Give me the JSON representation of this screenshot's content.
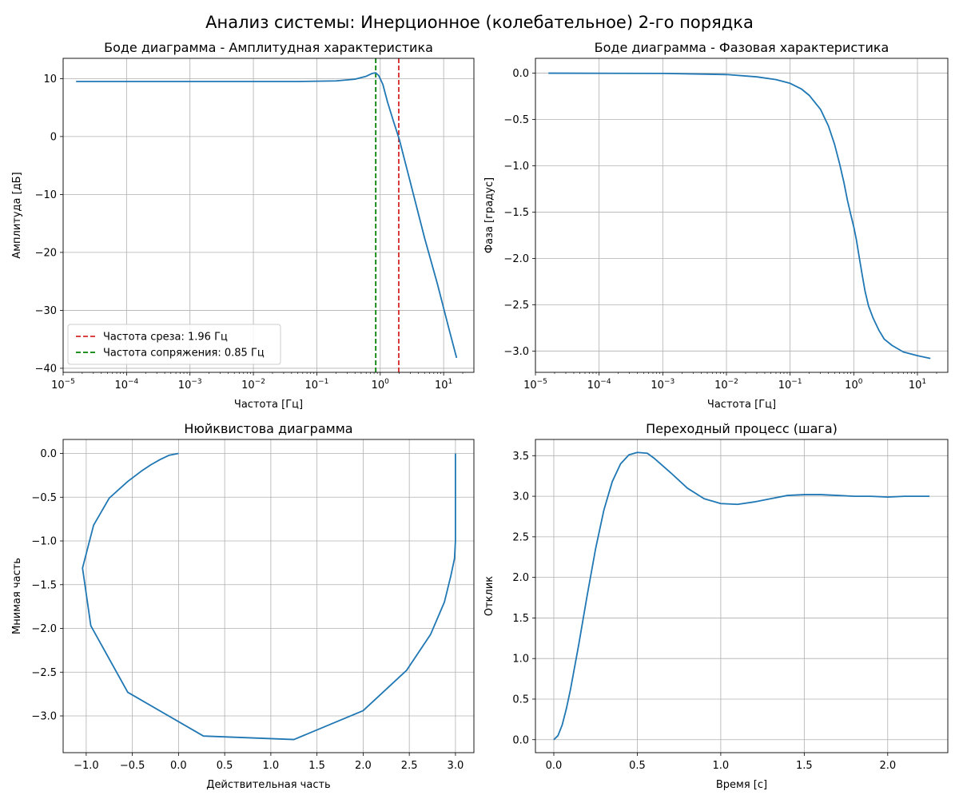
{
  "figure": {
    "title": "Анализ системы: Инерционное (колебательное) 2-го порядка"
  },
  "colors": {
    "series": "#1f77b4",
    "cutoff": "#d62728",
    "corner": "#008000",
    "grid": "#b0b0b0"
  },
  "chart_data": [
    {
      "type": "line",
      "title": "Боде диаграмма - Амплитудная характеристика",
      "xlabel": "Частота [Гц]",
      "ylabel": "Амплитуда [дБ]",
      "xscale": "log",
      "xlim": [
        1e-05,
        30
      ],
      "ylim": [
        -40.7,
        13.5
      ],
      "x_ticks": [
        1e-05,
        0.0001,
        0.001,
        0.01,
        0.1,
        1,
        10
      ],
      "x_tick_labels": [
        {
          "base": "10",
          "exp": "−5"
        },
        {
          "base": "10",
          "exp": "−4"
        },
        {
          "base": "10",
          "exp": "−3"
        },
        {
          "base": "10",
          "exp": "−2"
        },
        {
          "base": "10",
          "exp": "−1"
        },
        {
          "base": "10",
          "exp": "0"
        },
        {
          "base": "10",
          "exp": "1"
        }
      ],
      "y_ticks": [
        10,
        0,
        -10,
        -20,
        -30,
        -40
      ],
      "y_tick_labels": [
        "10",
        "0",
        "−10",
        "−20",
        "−30",
        "−40"
      ],
      "grid": true,
      "legend_position": "lower-left",
      "series": [
        {
          "x": [
            1.6e-05,
            0.001,
            0.05,
            0.2,
            0.4,
            0.6,
            0.75,
            0.85,
            0.95,
            1.1,
            1.3,
            1.6,
            2.0,
            3.0,
            5.0,
            8.0,
            12.0,
            16.0
          ],
          "y": [
            9.5,
            9.5,
            9.5,
            9.6,
            9.9,
            10.4,
            10.9,
            11.0,
            10.5,
            9.0,
            6.0,
            2.8,
            -0.5,
            -8.0,
            -17.5,
            -25.5,
            -33.0,
            -38.2
          ]
        }
      ],
      "vlines": [
        {
          "x": 1.96,
          "label": "Частота среза: 1.96 Гц",
          "color": "#d62728"
        },
        {
          "x": 0.85,
          "label": "Частота сопряжения: 0.85 Гц",
          "color": "#008000"
        }
      ]
    },
    {
      "type": "line",
      "title": "Боде диаграмма - Фазовая характеристика",
      "xlabel": "Частота [Гц]",
      "ylabel": "Фаза [градус]",
      "xscale": "log",
      "xlim": [
        1e-05,
        30
      ],
      "ylim": [
        -3.23,
        0.16
      ],
      "x_ticks": [
        1e-05,
        0.0001,
        0.001,
        0.01,
        0.1,
        1,
        10
      ],
      "x_tick_labels": [
        {
          "base": "10",
          "exp": "−5"
        },
        {
          "base": "10",
          "exp": "−4"
        },
        {
          "base": "10",
          "exp": "−3"
        },
        {
          "base": "10",
          "exp": "−2"
        },
        {
          "base": "10",
          "exp": "−1"
        },
        {
          "base": "10",
          "exp": "0"
        },
        {
          "base": "10",
          "exp": "1"
        }
      ],
      "y_ticks": [
        0,
        -0.5,
        -1,
        -1.5,
        -2,
        -2.5,
        -3
      ],
      "y_tick_labels": [
        "0.0",
        "−0.5",
        "−1.0",
        "−1.5",
        "−2.0",
        "−2.5",
        "−3.0"
      ],
      "grid": true,
      "series": [
        {
          "x": [
            1.6e-05,
            0.001,
            0.01,
            0.03,
            0.06,
            0.1,
            0.15,
            0.2,
            0.3,
            0.4,
            0.5,
            0.6,
            0.7,
            0.8,
            0.9,
            1.0,
            1.1,
            1.2,
            1.35,
            1.5,
            1.7,
            2.0,
            2.5,
            3.0,
            4.0,
            6.0,
            10.0,
            16.0
          ],
          "y": [
            0.0,
            -0.003,
            -0.015,
            -0.04,
            -0.07,
            -0.11,
            -0.17,
            -0.24,
            -0.39,
            -0.57,
            -0.77,
            -0.98,
            -1.18,
            -1.38,
            -1.53,
            -1.66,
            -1.8,
            -1.96,
            -2.17,
            -2.35,
            -2.51,
            -2.64,
            -2.78,
            -2.87,
            -2.94,
            -3.01,
            -3.05,
            -3.08
          ]
        }
      ]
    },
    {
      "type": "line",
      "title": "Нюйквистова диаграмма",
      "xlabel": "Действительная часть",
      "ylabel": "Мнимая часть",
      "xlim": [
        -1.25,
        3.2
      ],
      "ylim": [
        -3.42,
        0.16
      ],
      "x_ticks": [
        -1,
        -0.5,
        0,
        0.5,
        1,
        1.5,
        2,
        2.5,
        3
      ],
      "x_tick_labels": [
        "−1.0",
        "−0.5",
        "0.0",
        "0.5",
        "1.0",
        "1.5",
        "2.0",
        "2.5",
        "3.0"
      ],
      "y_ticks": [
        0,
        -0.5,
        -1,
        -1.5,
        -2,
        -2.5,
        -3
      ],
      "y_tick_labels": [
        "0.0",
        "−0.5",
        "−1.0",
        "−1.5",
        "−2.0",
        "−2.5",
        "−3.0"
      ],
      "grid": true,
      "series": [
        {
          "x": [
            3.0,
            3.0,
            3.0,
            2.99,
            2.95,
            2.88,
            2.73,
            2.47,
            2.0,
            1.25,
            0.27,
            -0.55,
            -0.95,
            -1.04,
            -0.92,
            -0.75,
            -0.55,
            -0.4,
            -0.3,
            -0.2,
            -0.1,
            0.0
          ],
          "y": [
            0.0,
            -0.5,
            -1.0,
            -1.2,
            -1.4,
            -1.7,
            -2.07,
            -2.48,
            -2.94,
            -3.27,
            -3.23,
            -2.73,
            -1.97,
            -1.31,
            -0.82,
            -0.51,
            -0.32,
            -0.2,
            -0.13,
            -0.07,
            -0.02,
            0.0
          ]
        }
      ]
    },
    {
      "type": "line",
      "title": "Переходный процесс (шага)",
      "xlabel": "Время [с]",
      "ylabel": "Отклик",
      "xlim": [
        -0.11,
        2.36
      ],
      "ylim": [
        -0.16,
        3.7
      ],
      "x_ticks": [
        0,
        0.5,
        1,
        1.5,
        2
      ],
      "x_tick_labels": [
        "0.0",
        "0.5",
        "1.0",
        "1.5",
        "2.0"
      ],
      "y_ticks": [
        0,
        0.5,
        1,
        1.5,
        2,
        2.5,
        3,
        3.5
      ],
      "y_tick_labels": [
        "0.0",
        "0.5",
        "1.0",
        "1.5",
        "2.0",
        "2.5",
        "3.0",
        "3.5"
      ],
      "grid": true,
      "series": [
        {
          "x": [
            0.0,
            0.025,
            0.05,
            0.075,
            0.1,
            0.15,
            0.2,
            0.25,
            0.3,
            0.35,
            0.4,
            0.45,
            0.5,
            0.56,
            0.6,
            0.7,
            0.8,
            0.9,
            1.0,
            1.1,
            1.2,
            1.3,
            1.4,
            1.5,
            1.6,
            1.7,
            1.8,
            1.9,
            2.0,
            2.1,
            2.25
          ],
          "y": [
            0.0,
            0.05,
            0.18,
            0.38,
            0.62,
            1.18,
            1.78,
            2.35,
            2.83,
            3.18,
            3.4,
            3.51,
            3.54,
            3.53,
            3.47,
            3.29,
            3.1,
            2.97,
            2.91,
            2.9,
            2.93,
            2.97,
            3.01,
            3.02,
            3.02,
            3.01,
            3.0,
            3.0,
            2.99,
            3.0,
            3.0
          ]
        }
      ]
    }
  ]
}
